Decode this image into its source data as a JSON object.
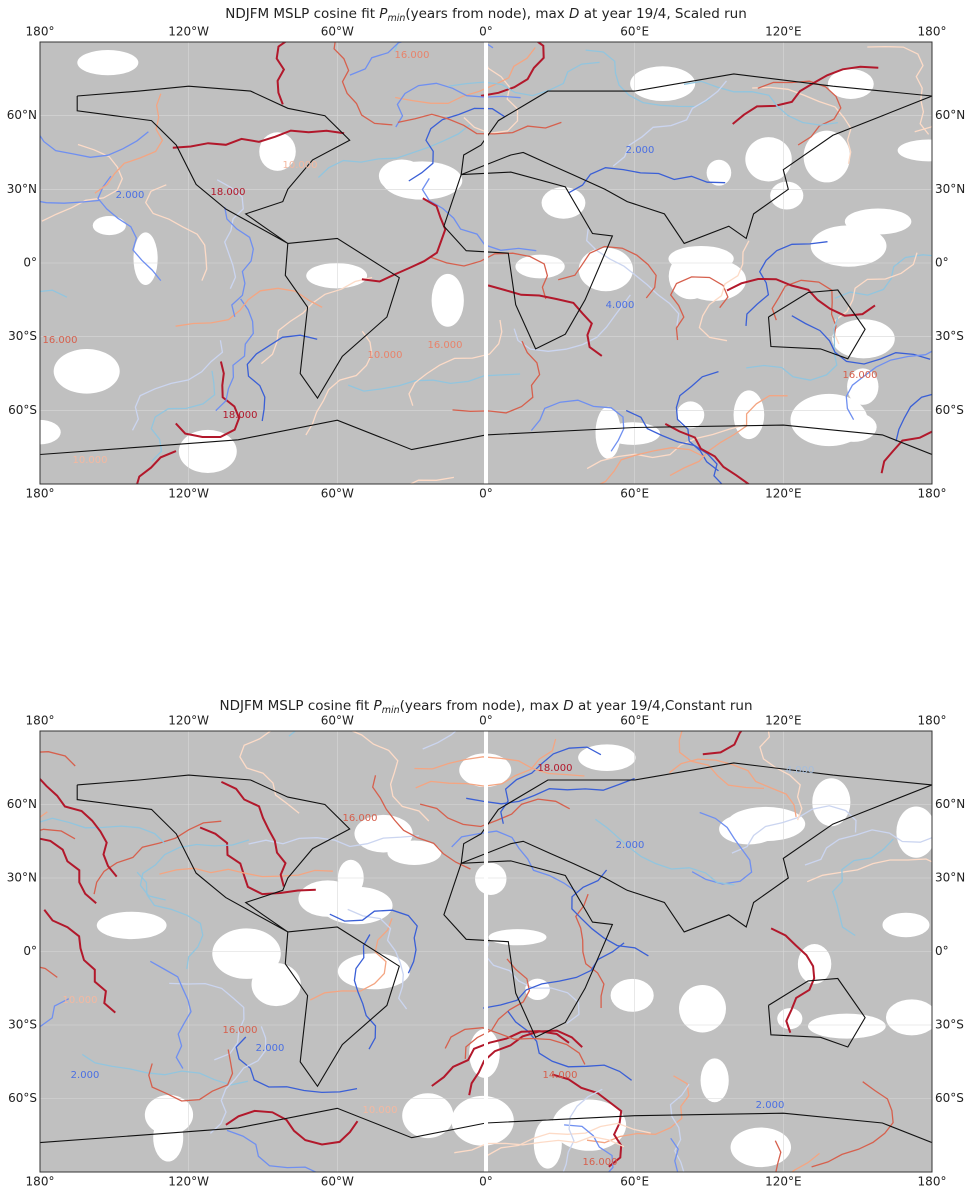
{
  "maps": [
    {
      "title": [
        "NDJFM MSLP cosine fit ",
        "P",
        "min",
        "(years from node), max ",
        "D",
        " at year 19/4, Scaled run"
      ],
      "lon_labels": [
        "180°",
        "120°W",
        "60°W",
        "0°",
        "60°E",
        "120°E",
        "180°"
      ],
      "lat_labels": [
        "60°N",
        "30°N",
        "0°",
        "30°S",
        "60°S"
      ],
      "contour_labels": [
        "16.000",
        "18.000",
        "10.000",
        "2.000",
        "16.000",
        "16.000",
        "10.000",
        "18.000",
        "4.000",
        "16.000",
        "2.000",
        "10.000"
      ]
    },
    {
      "title": [
        "NDJFM MSLP cosine fit ",
        "P",
        "min",
        "(years from node), max ",
        "D",
        " at year 19/4,Constant run"
      ],
      "lon_labels": [
        "180°",
        "120°W",
        "60°W",
        "0°",
        "60°E",
        "120°E",
        "180°"
      ],
      "lat_labels": [
        "60°N",
        "30°N",
        "0°",
        "30°S",
        "60°S"
      ],
      "contour_labels": [
        "18.000",
        "4.000",
        "2.000",
        "16.000",
        "14.000",
        "2.000",
        "16.000",
        "10.000",
        "2.000",
        "10.000",
        "16.000",
        "2.000"
      ]
    }
  ]
}
